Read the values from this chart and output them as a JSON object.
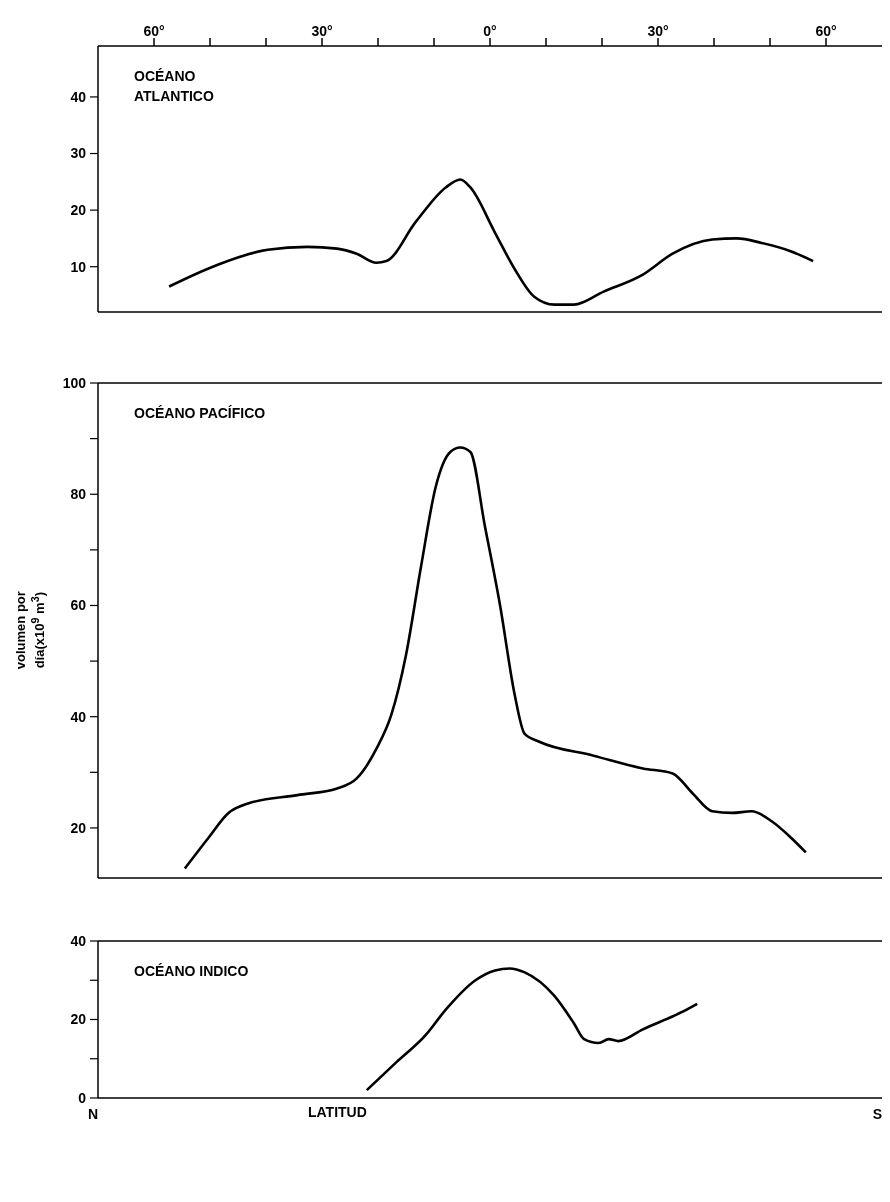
{
  "chart_data": [
    {
      "type": "line",
      "annotations": [
        "OCÉANO ATLANTICO"
      ],
      "xlim": [
        70,
        -70
      ],
      "xticks": [
        {
          "value": 60,
          "label": "60°"
        },
        {
          "value": 50,
          "label": null
        },
        {
          "value": 40,
          "label": null
        },
        {
          "value": 30,
          "label": "30°"
        },
        {
          "value": 20,
          "label": null
        },
        {
          "value": 10,
          "label": null
        },
        {
          "value": 0,
          "label": "0°"
        },
        {
          "value": -10,
          "label": null
        },
        {
          "value": -20,
          "label": null
        },
        {
          "value": -30,
          "label": "30°"
        },
        {
          "value": -40,
          "label": null
        },
        {
          "value": -50,
          "label": null
        },
        {
          "value": -60,
          "label": "60°"
        }
      ],
      "ylim": [
        2,
        49
      ],
      "yticks": [
        10,
        20,
        30,
        40
      ],
      "grid": false,
      "legend": false,
      "marker": "none",
      "line_style": "solid",
      "series": [
        {
          "color": "#000000",
          "x": [
            57.3,
            48.5,
            39.7,
            32.6,
            27.3,
            23.8,
            20.3,
            18.5,
            13.2,
            7.9,
            5.3,
            3.5,
            -0.9,
            -4.4,
            -7.9,
            -11.5,
            -15,
            -20.3,
            -27.3,
            -32.6,
            -39.7,
            -44.1,
            -48.5,
            -53.8,
            -57.7
          ],
          "values": [
            6.5,
            10.4,
            13,
            13.5,
            13.2,
            12.3,
            10.7,
            11,
            18,
            24,
            25.4,
            24,
            16,
            9.6,
            4.7,
            3.3,
            3.3,
            5.6,
            8.6,
            12.3,
            14.8,
            15,
            14.2,
            12.7,
            11
          ]
        }
      ]
    },
    {
      "type": "line",
      "ylabel": "volumen por día(x10$^{9}$ m$^{3}$)",
      "annotations": [
        "OCÉANO PACÍFICO"
      ],
      "tick_labels": "y",
      "xlim": [
        70,
        -70
      ],
      "ylim": [
        11,
        100
      ],
      "yticks": [
        20,
        {
          "value": 30,
          "label": null
        },
        40,
        {
          "value": 50,
          "label": null
        },
        60,
        {
          "value": 70,
          "label": null
        },
        80,
        {
          "value": 90,
          "label": null
        },
        100
      ],
      "grid": false,
      "legend": false,
      "marker": "none",
      "line_style": "solid",
      "series": [
        {
          "color": "#000000",
          "x": [
            54.5,
            50.3,
            46.7,
            43.2,
            34.4,
            27.3,
            23.8,
            20.3,
            17.6,
            15,
            12.3,
            9.7,
            7.1,
            5.3,
            3.5,
            0.9,
            -1.8,
            -4.4,
            -6.2,
            -8.8,
            -18.5,
            -27.3,
            -32.6,
            -36.2,
            -39.7,
            -43.2,
            -46.7,
            -50.3,
            -53.8,
            -56.4
          ],
          "values": [
            12.7,
            18.2,
            22.7,
            24.4,
            25.9,
            27.1,
            28.9,
            34.2,
            40.4,
            51.1,
            67.1,
            81.3,
            87.6,
            88.4,
            87.6,
            74.2,
            60,
            44,
            36.9,
            35.5,
            33,
            30.7,
            29.8,
            26.2,
            23,
            22.7,
            23,
            21.2,
            18.2,
            15.6
          ]
        }
      ]
    },
    {
      "type": "line",
      "xlabel": "LATITUD",
      "annotations": [
        "OCÉANO INDICO",
        "N",
        "S"
      ],
      "tick_labels": "y",
      "xlim": [
        70,
        -70
      ],
      "ylim": [
        0,
        40
      ],
      "yticks": [
        0,
        {
          "value": 10,
          "label": null
        },
        20,
        {
          "value": 30,
          "label": null
        },
        40
      ],
      "grid": false,
      "legend": false,
      "marker": "none",
      "line_style": "solid",
      "series": [
        {
          "color": "#000000",
          "x": [
            22,
            16.8,
            11.5,
            7.9,
            2.6,
            -0.9,
            -3.5,
            -6.2,
            -11.5,
            -15,
            -16.8,
            -19.4,
            -21.2,
            -22.9,
            -27.3,
            -34.4,
            -37
          ],
          "values": [
            2,
            9,
            16,
            22.5,
            30,
            32.5,
            33,
            32,
            26,
            19,
            15,
            14,
            15,
            14.5,
            17.5,
            22,
            24
          ]
        }
      ]
    }
  ]
}
